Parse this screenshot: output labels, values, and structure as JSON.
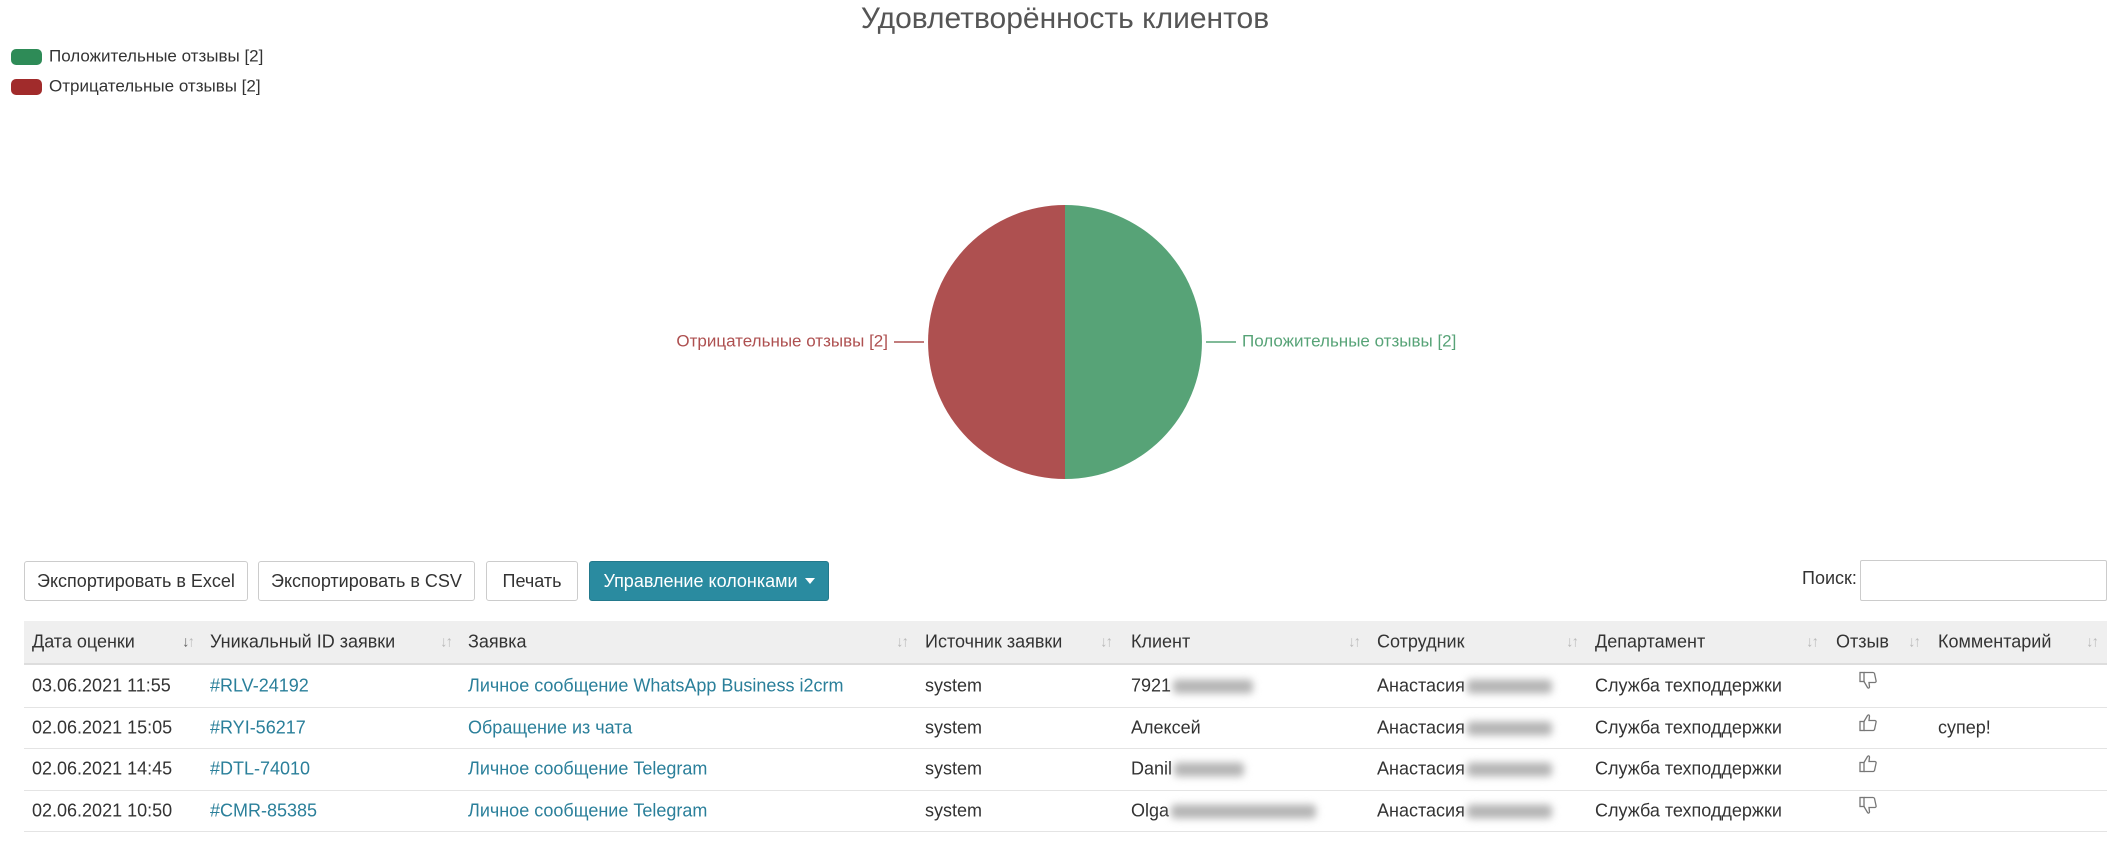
{
  "chart_data": {
    "type": "pie",
    "title": "Удовлетворённость клиентов",
    "categories": [
      "Положительные отзывы [2]",
      "Отрицательные отзывы [2]"
    ],
    "values": [
      2,
      2
    ],
    "colors": [
      "#57a377",
      "#ae5050"
    ],
    "legend_colors": [
      "#2e8b57",
      "#a12b2b"
    ],
    "legend": "top-left"
  },
  "toolbar": {
    "buttons": [
      "Экспортировать в Excel",
      "Экспортировать в CSV",
      "Печать",
      "Управление колонками"
    ],
    "search_label": "Поиск:"
  },
  "table": {
    "columns": [
      "Дата оценки",
      "Уникальный ID заявки",
      "Заявка",
      "Источник заявки",
      "Клиент",
      "Сотрудник",
      "Департамент",
      "Отзыв",
      "Комментарий"
    ],
    "rows": [
      {
        "date": "03.06.2021 11:55",
        "id": "#RLV-24192",
        "request": "Личное сообщение WhatsApp Business i2crm",
        "source": "system",
        "client": "7921",
        "employee": "Анастасия",
        "department": "Служба техподдержки",
        "feedback": "negative"
      },
      {
        "date": "02.06.2021 15:05",
        "id": "#RYI-56217",
        "request": "Обращение из чата",
        "source": "system",
        "client": "Алексей",
        "employee": "Анастасия",
        "department": "Служба техподдержки",
        "feedback": "positive",
        "comment": "супер!"
      },
      {
        "date": "02.06.2021 14:45",
        "id": "#DTL-74010",
        "request": "Личное сообщение Telegram",
        "source": "system",
        "client": "Danil",
        "employee": "Анастасия",
        "department": "Служба техподдержки",
        "feedback": "positive"
      },
      {
        "date": "02.06.2021 10:50",
        "id": "#CMR-85385",
        "request": "Личное сообщение Telegram",
        "source": "system",
        "client": "Olga",
        "employee": "Анастасия",
        "department": "Служба техподдержки",
        "feedback": "negative"
      }
    ]
  }
}
